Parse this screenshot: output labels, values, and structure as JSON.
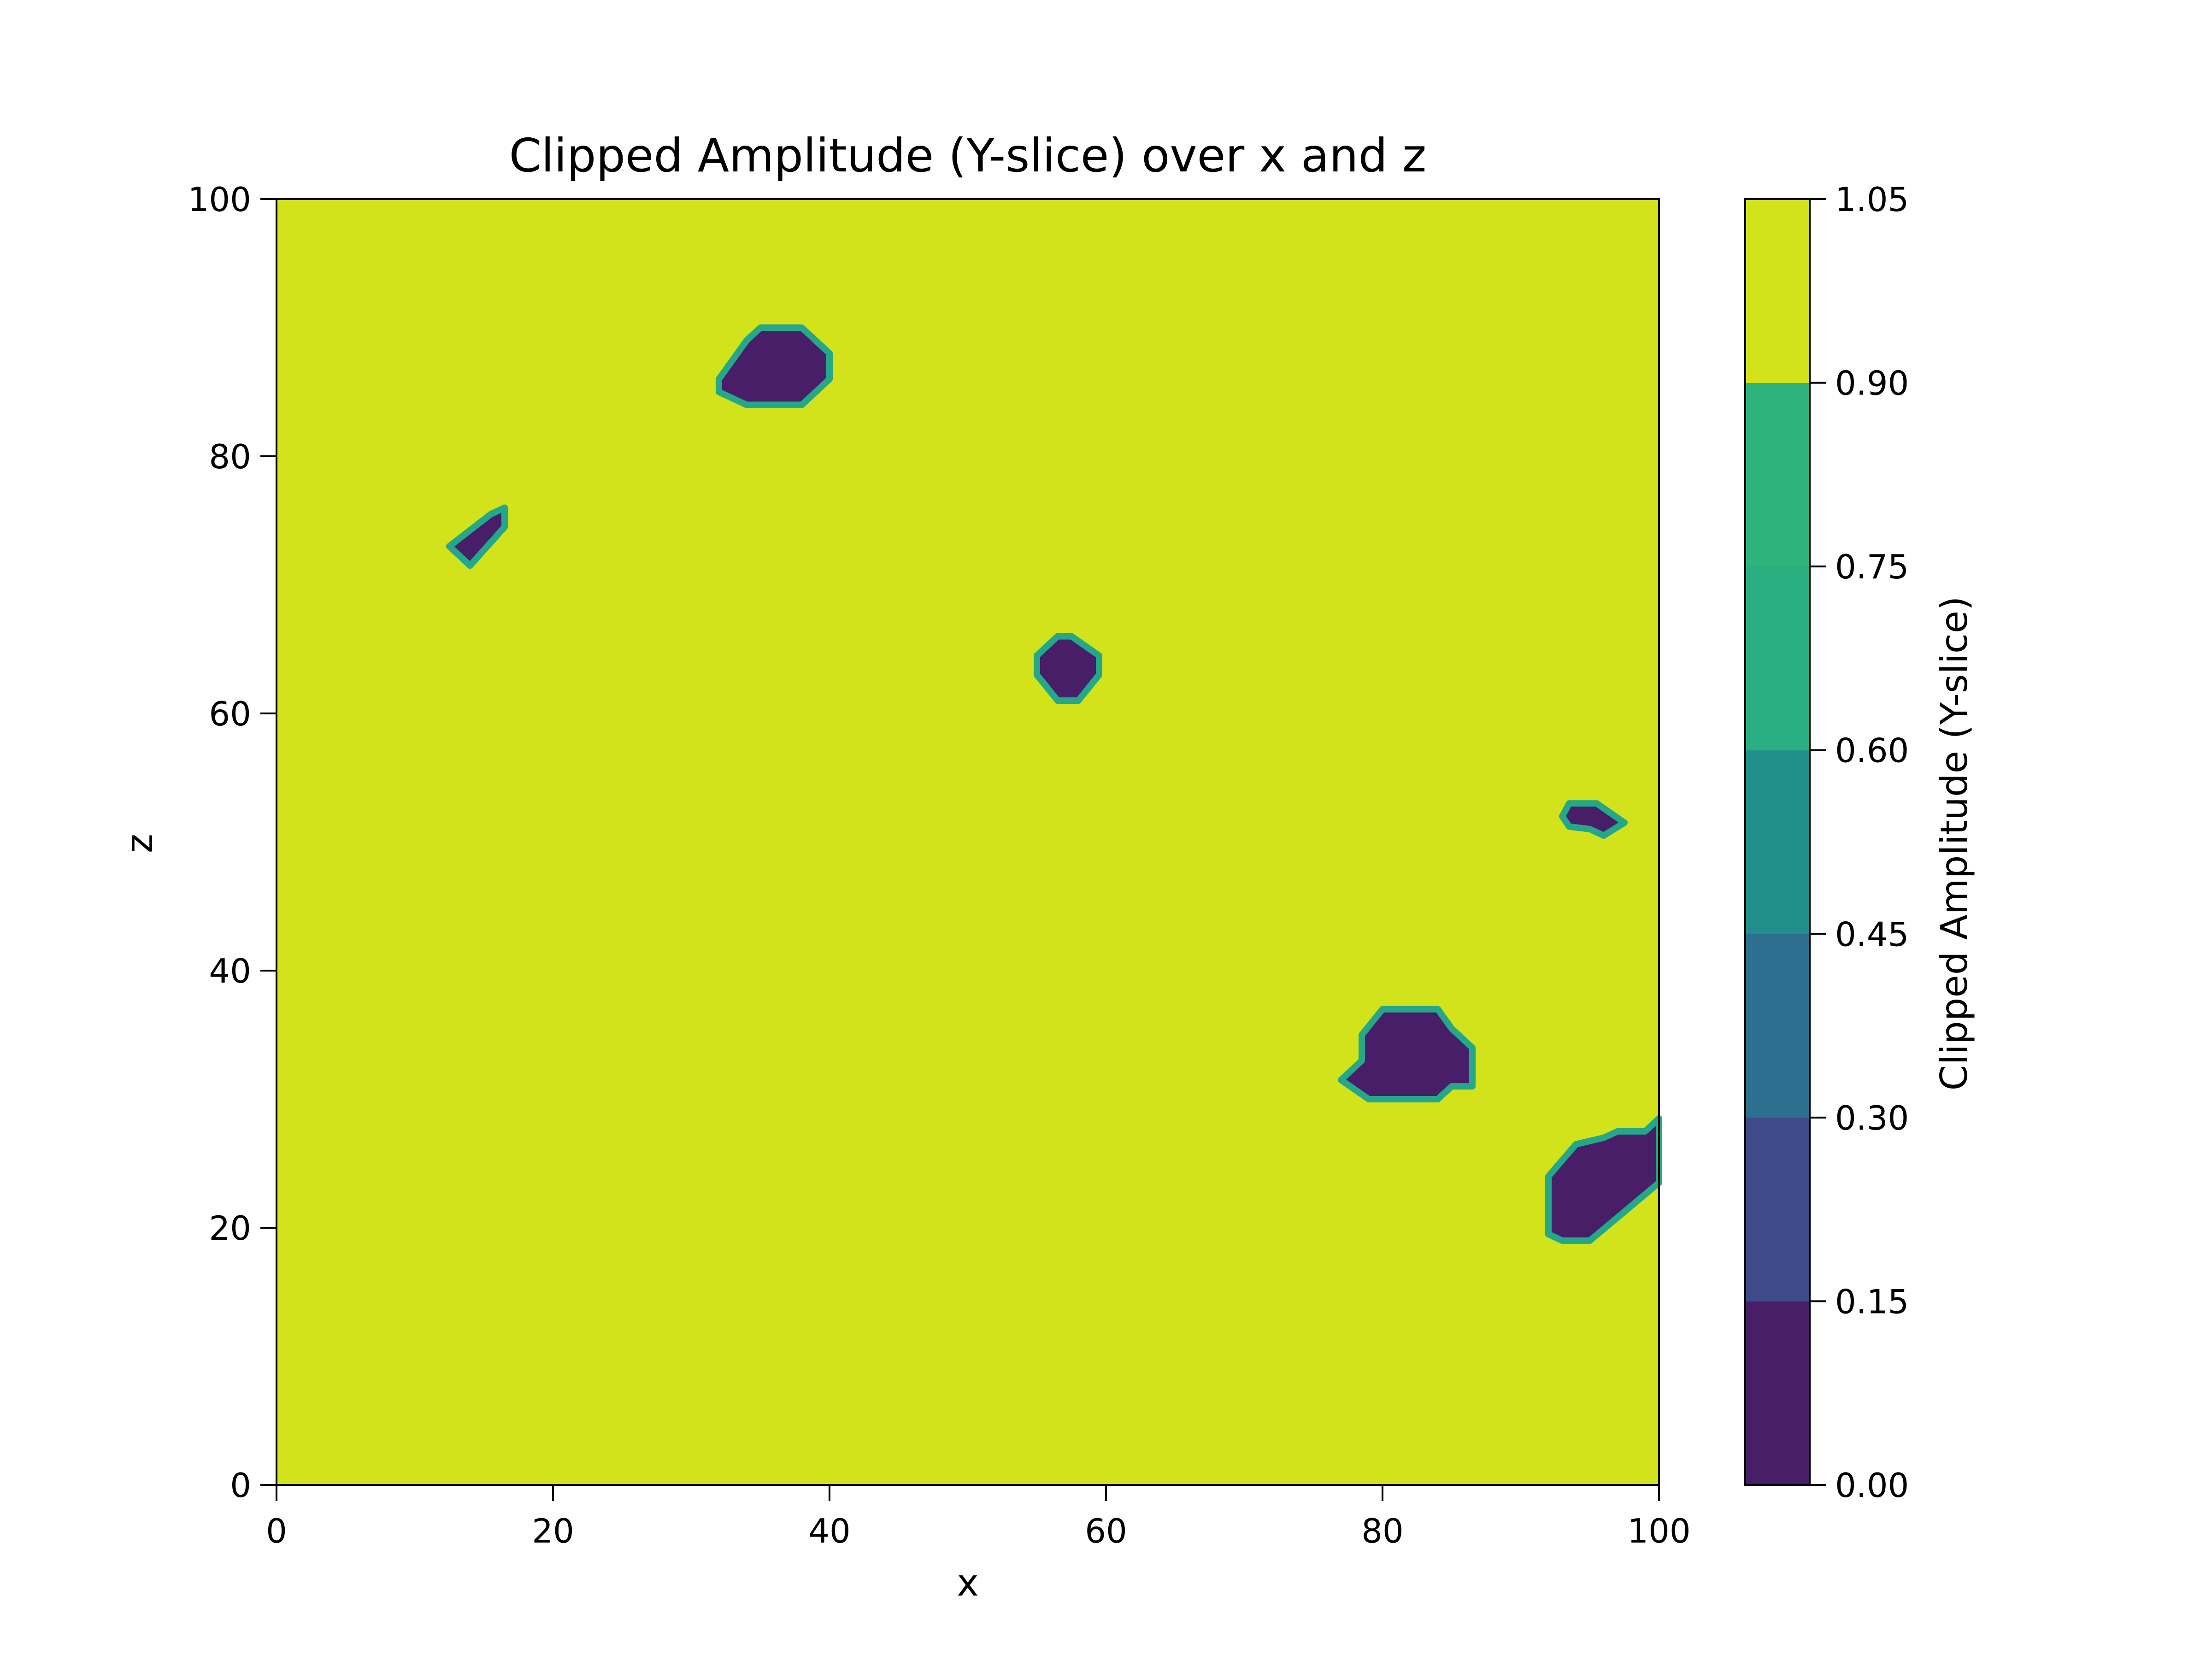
{
  "chart_data": {
    "type": "heatmap",
    "title": "Clipped Amplitude (Y-slice) over x and z",
    "xlabel": "x",
    "ylabel": "z",
    "xlim": [
      0,
      100
    ],
    "ylim": [
      0,
      100
    ],
    "x_ticks": [
      0,
      20,
      40,
      60,
      80,
      100
    ],
    "y_ticks": [
      0,
      20,
      40,
      60,
      80,
      100
    ],
    "x_tick_labels": [
      "0",
      "20",
      "40",
      "60",
      "80",
      "100"
    ],
    "y_tick_labels": [
      "0",
      "20",
      "40",
      "60",
      "80",
      "100"
    ],
    "background_value_range": [
      0.9,
      1.05
    ],
    "background_color": "#d2e21b",
    "regions": [
      {
        "level_range": [
          0.0,
          0.15
        ],
        "outline": [
          [
            32,
            86
          ],
          [
            34,
            89
          ],
          [
            35,
            90
          ],
          [
            38,
            90
          ],
          [
            40,
            88
          ],
          [
            40,
            86
          ],
          [
            38,
            84
          ],
          [
            34,
            84
          ],
          [
            32,
            85
          ]
        ]
      },
      {
        "level_range": [
          0.0,
          0.15
        ],
        "outline": [
          [
            12.5,
            73
          ],
          [
            14,
            71.5
          ],
          [
            16.5,
            74.5
          ],
          [
            16.5,
            76
          ],
          [
            15.5,
            75.5
          ]
        ]
      },
      {
        "level_range": [
          0.0,
          0.15
        ],
        "outline": [
          [
            55,
            63
          ],
          [
            55,
            64.5
          ],
          [
            56.5,
            66
          ],
          [
            57.5,
            66
          ],
          [
            59.5,
            64.5
          ],
          [
            59.5,
            63
          ],
          [
            58,
            61
          ],
          [
            56.5,
            61
          ]
        ]
      },
      {
        "level_range": [
          0.0,
          0.15
        ],
        "outline": [
          [
            93,
            52
          ],
          [
            93.5,
            53
          ],
          [
            95.5,
            53
          ],
          [
            97.5,
            51.5
          ],
          [
            96,
            50.5
          ],
          [
            95,
            51
          ],
          [
            93.5,
            51.2
          ]
        ]
      },
      {
        "level_range": [
          0.0,
          0.15
        ],
        "outline": [
          [
            77,
            31.5
          ],
          [
            79,
            30
          ],
          [
            84,
            30
          ],
          [
            85,
            31
          ],
          [
            86.5,
            31
          ],
          [
            86.5,
            34
          ],
          [
            85,
            35.5
          ],
          [
            84,
            37
          ],
          [
            80,
            37
          ],
          [
            78.5,
            35
          ],
          [
            78.5,
            33
          ]
        ]
      },
      {
        "level_range": [
          0.0,
          0.15
        ],
        "outline": [
          [
            92,
            19.5
          ],
          [
            93,
            19
          ],
          [
            95,
            19
          ],
          [
            100,
            23.5
          ],
          [
            100,
            28.5
          ],
          [
            99,
            27.5
          ],
          [
            97,
            27.5
          ],
          [
            96,
            27
          ],
          [
            94,
            26.5
          ],
          [
            92,
            24
          ]
        ]
      }
    ]
  },
  "colorbar": {
    "label": "Clipped Amplitude (Y-slice)",
    "tick_labels": [
      "0.00",
      "0.15",
      "0.30",
      "0.45",
      "0.60",
      "0.75",
      "0.90",
      "1.05"
    ],
    "levels": [
      0.0,
      0.15,
      0.3,
      0.45,
      0.6,
      0.75,
      0.9,
      1.05
    ],
    "colors": [
      "#471e67",
      "#3e4a89",
      "#2c6f8e",
      "#21908d",
      "#28ae80",
      "#2db27d",
      "#70cf57",
      "#d2e21b"
    ],
    "band_colors": [
      "#471e67",
      "#3e4a89",
      "#2c6f8e",
      "#21908d",
      "#28ae80",
      "#2eb37c",
      "#70cf57"
    ]
  },
  "styles": {
    "region_fill": "#471e67",
    "region_edge": "#25a88a"
  }
}
